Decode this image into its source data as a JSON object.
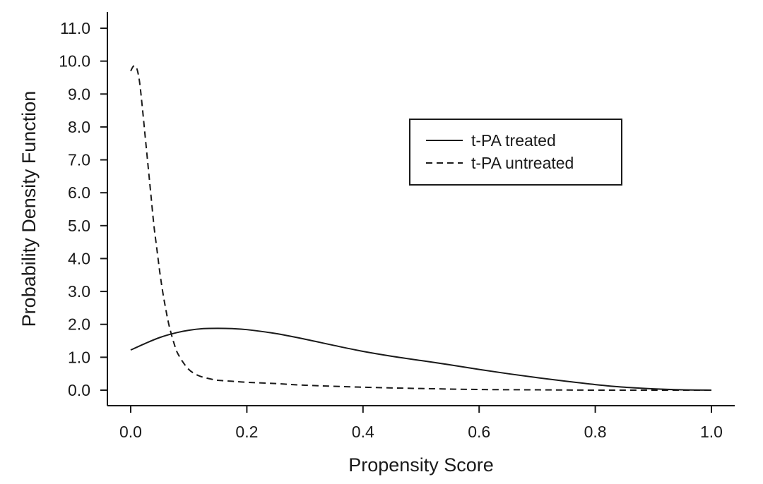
{
  "chart_data": {
    "type": "line",
    "title": "",
    "xlabel": "Propensity Score",
    "ylabel": "Probability Density Function",
    "xlim": [
      0.0,
      1.0
    ],
    "ylim": [
      0.0,
      11.0
    ],
    "x_ticks": [
      "0.0",
      "0.2",
      "0.4",
      "0.6",
      "0.8",
      "1.0"
    ],
    "y_ticks": [
      "0.0",
      "1.0",
      "2.0",
      "3.0",
      "4.0",
      "5.0",
      "6.0",
      "7.0",
      "8.0",
      "9.0",
      "10.0",
      "11.0"
    ],
    "grid": false,
    "legend_position": "top-right",
    "series": [
      {
        "name": "t-PA treated",
        "line_style": "solid",
        "color": "#1a1a1a",
        "x": [
          0.0,
          0.025,
          0.05,
          0.075,
          0.1,
          0.125,
          0.15,
          0.175,
          0.2,
          0.25,
          0.3,
          0.35,
          0.4,
          0.45,
          0.5,
          0.55,
          0.6,
          0.65,
          0.7,
          0.75,
          0.8,
          0.85,
          0.9,
          0.95,
          1.0
        ],
        "y": [
          1.22,
          1.42,
          1.6,
          1.73,
          1.82,
          1.87,
          1.88,
          1.87,
          1.84,
          1.72,
          1.55,
          1.36,
          1.18,
          1.03,
          0.9,
          0.77,
          0.63,
          0.5,
          0.38,
          0.27,
          0.17,
          0.09,
          0.04,
          0.01,
          0.0
        ]
      },
      {
        "name": "t-PA untreated",
        "line_style": "dashed",
        "color": "#1a1a1a",
        "x": [
          0.0,
          0.005,
          0.01,
          0.015,
          0.02,
          0.025,
          0.03,
          0.035,
          0.04,
          0.045,
          0.05,
          0.055,
          0.06,
          0.065,
          0.07,
          0.075,
          0.08,
          0.09,
          0.1,
          0.11,
          0.12,
          0.13,
          0.14,
          0.15,
          0.175,
          0.2,
          0.25,
          0.3,
          0.4,
          0.5,
          0.6,
          0.7,
          0.8,
          0.9,
          1.0
        ],
        "y": [
          9.7,
          9.85,
          9.8,
          9.4,
          8.6,
          7.7,
          6.8,
          5.9,
          5.0,
          4.3,
          3.6,
          3.0,
          2.5,
          2.05,
          1.7,
          1.4,
          1.15,
          0.85,
          0.63,
          0.5,
          0.42,
          0.37,
          0.33,
          0.3,
          0.27,
          0.24,
          0.2,
          0.15,
          0.09,
          0.05,
          0.02,
          0.01,
          0.0,
          0.0,
          0.0
        ]
      }
    ]
  }
}
